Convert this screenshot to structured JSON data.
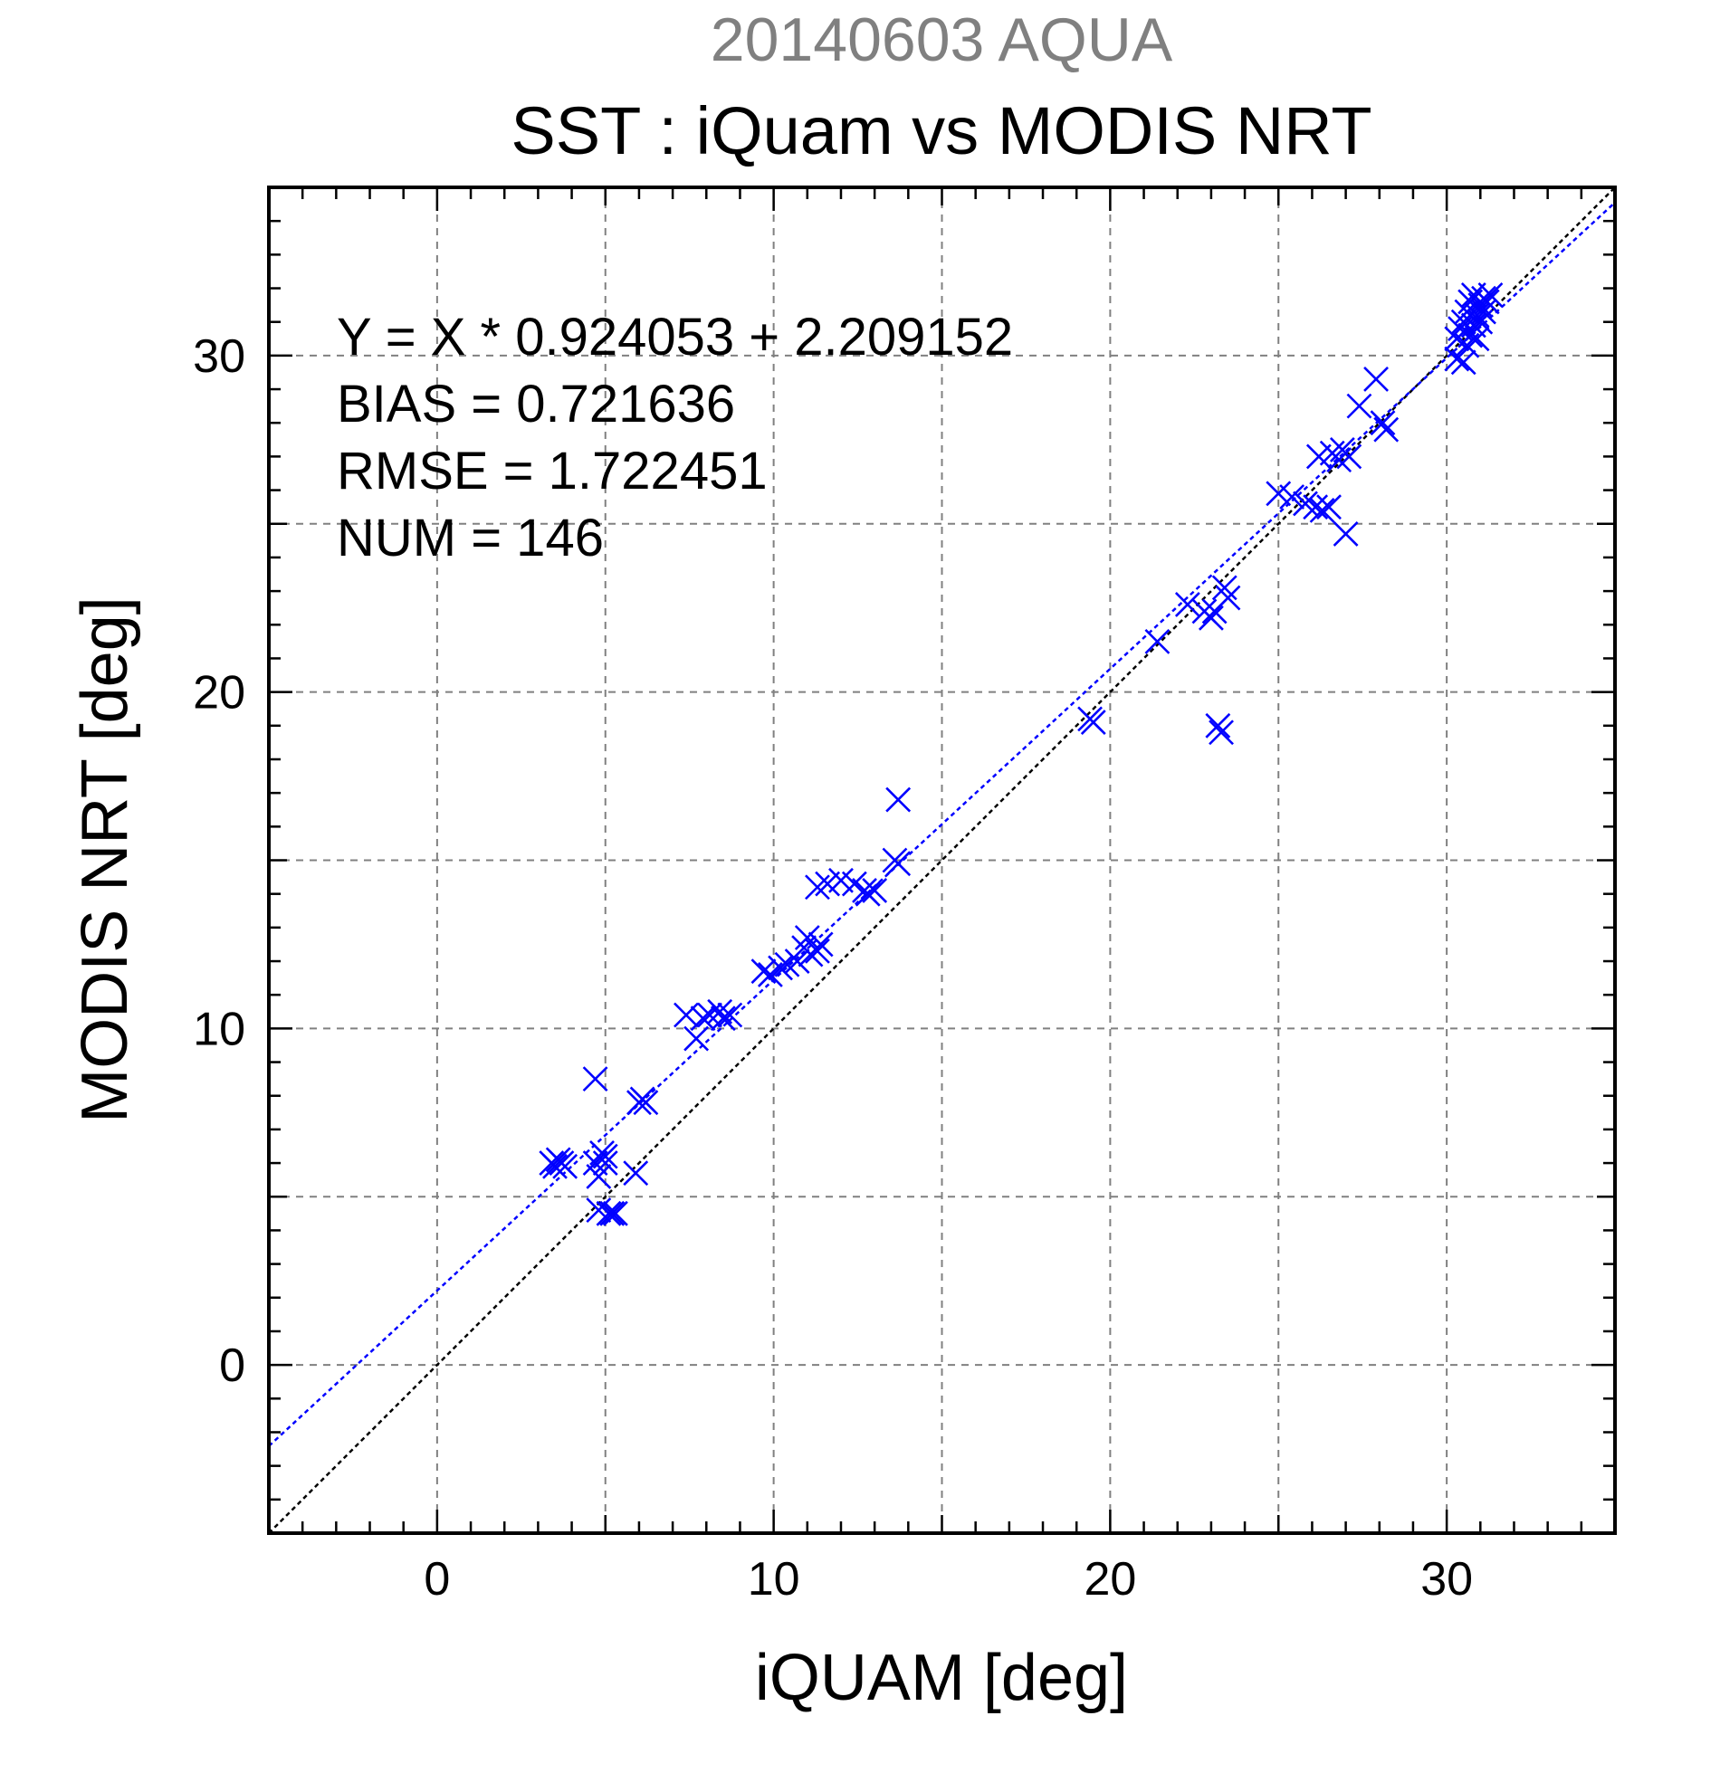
{
  "chart_data": {
    "type": "scatter",
    "title": "20140603 AQUA",
    "subtitle": "SST : iQuam vs MODIS NRT",
    "xlabel": "iQUAM [deg]",
    "ylabel": "MODIS NRT [deg]",
    "xlim": [
      -5,
      35
    ],
    "ylim": [
      -5,
      35
    ],
    "xticks": [
      0,
      10,
      20,
      30
    ],
    "yticks": [
      0,
      10,
      20,
      30
    ],
    "grid": true,
    "annotations": [
      "Y = X * 0.924053 + 2.209152",
      "BIAS = 0.721636",
      "RMSE = 1.722451",
      "NUM = 146"
    ],
    "fit_line": {
      "slope": 0.924053,
      "intercept": 2.209152,
      "color": "#0000ff"
    },
    "identity_line": {
      "slope": 1,
      "intercept": 0,
      "color": "#000000"
    },
    "series": [
      {
        "marker": "x",
        "color": "#0000ff",
        "points": [
          [
            3.4,
            6.0
          ],
          [
            3.5,
            5.9
          ],
          [
            3.6,
            6.1
          ],
          [
            3.7,
            6.0
          ],
          [
            3.8,
            5.9
          ],
          [
            4.7,
            8.5
          ],
          [
            4.7,
            6.0
          ],
          [
            4.8,
            5.6
          ],
          [
            4.8,
            4.6
          ],
          [
            4.9,
            6.3
          ],
          [
            5.0,
            6.2
          ],
          [
            5.0,
            6.0
          ],
          [
            5.1,
            4.5
          ],
          [
            5.2,
            4.5
          ],
          [
            5.3,
            4.5
          ],
          [
            5.9,
            5.7
          ],
          [
            6.0,
            7.8
          ],
          [
            6.1,
            7.9
          ],
          [
            6.2,
            7.8
          ],
          [
            7.4,
            10.4
          ],
          [
            7.7,
            9.7
          ],
          [
            7.9,
            10.3
          ],
          [
            8.1,
            10.4
          ],
          [
            8.4,
            10.5
          ],
          [
            8.5,
            10.3
          ],
          [
            8.7,
            10.4
          ],
          [
            9.7,
            11.7
          ],
          [
            9.9,
            11.6
          ],
          [
            10.2,
            11.8
          ],
          [
            10.4,
            11.9
          ],
          [
            10.7,
            12.0
          ],
          [
            10.9,
            12.4
          ],
          [
            11.0,
            12.7
          ],
          [
            11.1,
            12.2
          ],
          [
            11.3,
            12.3
          ],
          [
            11.3,
            14.2
          ],
          [
            11.4,
            12.5
          ],
          [
            11.6,
            14.3
          ],
          [
            12.0,
            14.4
          ],
          [
            12.4,
            14.3
          ],
          [
            12.7,
            14.1
          ],
          [
            12.8,
            14.0
          ],
          [
            13.0,
            14.1
          ],
          [
            13.6,
            15.0
          ],
          [
            13.7,
            14.9
          ],
          [
            13.7,
            16.8
          ],
          [
            19.4,
            19.2
          ],
          [
            19.5,
            19.1
          ],
          [
            21.4,
            21.5
          ],
          [
            22.3,
            22.6
          ],
          [
            22.8,
            22.4
          ],
          [
            23.0,
            22.2
          ],
          [
            23.1,
            22.4
          ],
          [
            23.2,
            19.0
          ],
          [
            23.3,
            18.8
          ],
          [
            23.4,
            23.1
          ],
          [
            23.5,
            22.8
          ],
          [
            25.0,
            25.9
          ],
          [
            25.4,
            25.8
          ],
          [
            25.8,
            25.6
          ],
          [
            26.1,
            25.5
          ],
          [
            26.2,
            27.0
          ],
          [
            26.3,
            25.4
          ],
          [
            26.5,
            25.5
          ],
          [
            26.6,
            27.1
          ],
          [
            26.8,
            26.9
          ],
          [
            26.9,
            27.2
          ],
          [
            27.0,
            24.7
          ],
          [
            27.1,
            27.0
          ],
          [
            27.4,
            28.5
          ],
          [
            27.9,
            29.3
          ],
          [
            28.1,
            28.0
          ],
          [
            28.2,
            27.8
          ],
          [
            30.3,
            30.5
          ],
          [
            30.3,
            29.9
          ],
          [
            30.4,
            30.8
          ],
          [
            30.5,
            31.0
          ],
          [
            30.5,
            29.8
          ],
          [
            30.6,
            30.3
          ],
          [
            30.6,
            31.3
          ],
          [
            30.7,
            31.6
          ],
          [
            30.7,
            30.6
          ],
          [
            30.8,
            30.9
          ],
          [
            30.8,
            31.8
          ],
          [
            30.9,
            31.2
          ],
          [
            30.9,
            30.5
          ],
          [
            31.0,
            31.5
          ],
          [
            31.0,
            31.0
          ],
          [
            31.1,
            31.7
          ],
          [
            31.1,
            31.3
          ],
          [
            31.2,
            31.6
          ],
          [
            31.3,
            31.8
          ]
        ]
      }
    ]
  }
}
